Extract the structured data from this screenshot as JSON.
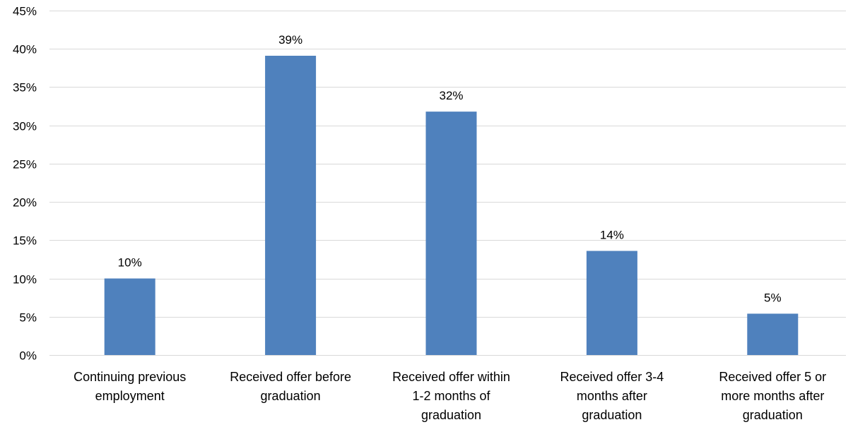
{
  "chart_data": {
    "type": "bar",
    "title": "",
    "xlabel": "",
    "ylabel": "",
    "categories": [
      [
        "Continuing previous",
        "employment"
      ],
      [
        "Received offer before",
        "graduation"
      ],
      [
        "Received offer within",
        "1-2 months of",
        "graduation"
      ],
      [
        "Received offer 3-4",
        "months after",
        "graduation"
      ],
      [
        "Received offer 5 or",
        "more months after",
        "graduation"
      ]
    ],
    "values": [
      10,
      39,
      32,
      14,
      5
    ],
    "data_labels": [
      "10%",
      "39%",
      "32%",
      "14%",
      "5%"
    ],
    "bar_heights_percent": [
      10.0,
      39.1,
      31.8,
      13.6,
      5.4
    ],
    "ylim": [
      0,
      45
    ],
    "yticks": [
      0,
      5,
      10,
      15,
      20,
      25,
      30,
      35,
      40,
      45
    ],
    "ytick_labels": [
      "0%",
      "5%",
      "10%",
      "15%",
      "20%",
      "25%",
      "30%",
      "35%",
      "40%",
      "45%"
    ],
    "grid": true,
    "legend": "none",
    "colors": {
      "bar": "#4f81bd",
      "grid": "#d9d9d9",
      "text": "#000000"
    }
  }
}
